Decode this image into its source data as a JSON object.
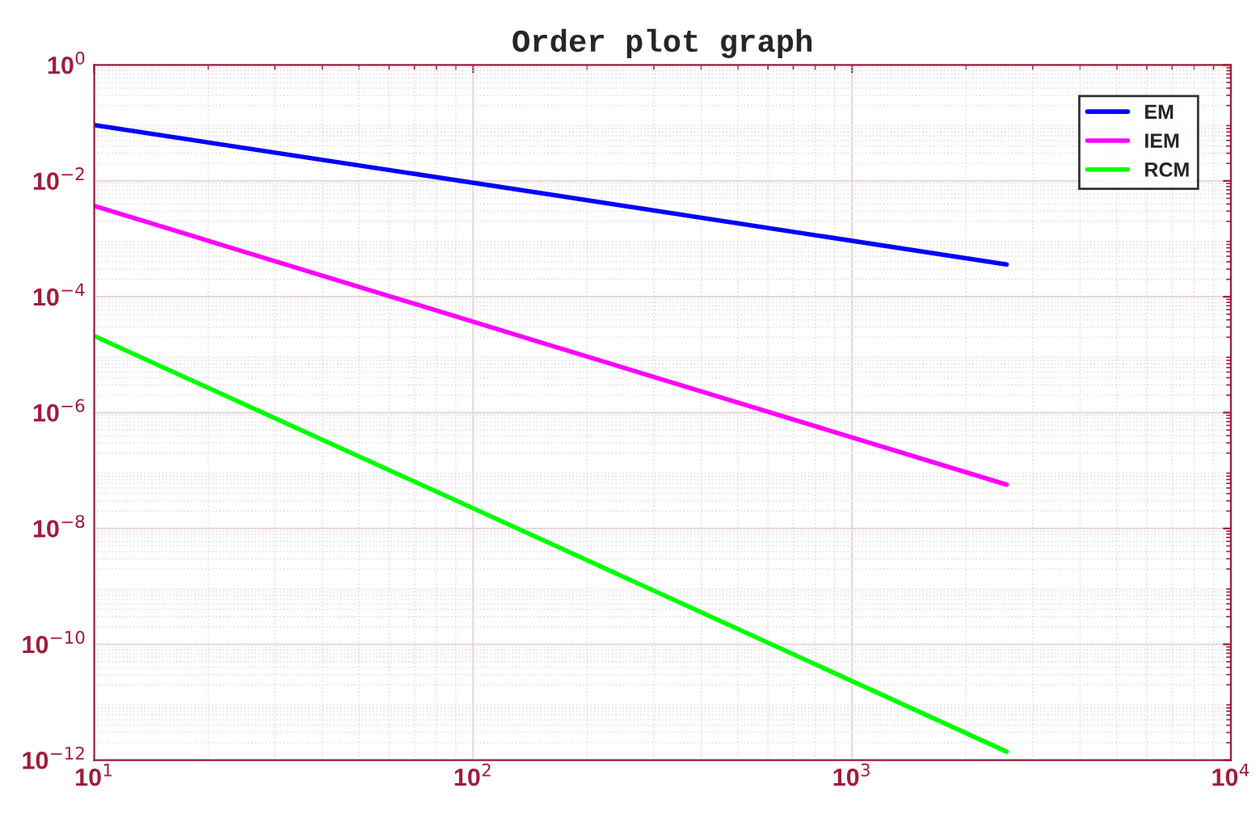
{
  "chart_data": {
    "type": "line",
    "title": "Order plot graph",
    "log": "xy",
    "grid": true,
    "legend": "top right",
    "line_style": "solid",
    "marker": "none",
    "xlim": [
      10,
      10000
    ],
    "xticks": [
      {
        "value": 10,
        "label": "10$^{1}$"
      },
      {
        "value": 100,
        "label": "10$^{2}$"
      },
      {
        "value": 1000,
        "label": "10$^{3}$"
      },
      {
        "value": 10000,
        "label": "10$^{4}$"
      }
    ],
    "ylim": [
      1e-12,
      1
    ],
    "yticks": [
      {
        "value": 1e-12,
        "label": "10$^{−12}$"
      },
      {
        "value": 1e-10,
        "label": "10$^{−10}$"
      },
      {
        "value": 1e-08,
        "label": "10$^{−8}$"
      },
      {
        "value": 1e-06,
        "label": "10$^{−6}$"
      },
      {
        "value": 0.0001,
        "label": "10$^{−4}$"
      },
      {
        "value": 0.01,
        "label": "10$^{−2}$"
      },
      {
        "value": 1,
        "label": "10$^{0}$"
      }
    ],
    "x": [
      10,
      160,
      2560
    ],
    "series": [
      {
        "name": "EM",
        "color": "#0000ff",
        "values": [
          0.092,
          0.0058,
          0.00036
        ]
      },
      {
        "name": "IEM",
        "color": "#ff00ff",
        "values": [
          0.0037,
          1.45e-05,
          5.7e-08
        ]
      },
      {
        "name": "RCM",
        "color": "#00ff00",
        "values": [
          2.1e-05,
          5.5e-09,
          1.4e-12
        ]
      }
    ]
  }
}
